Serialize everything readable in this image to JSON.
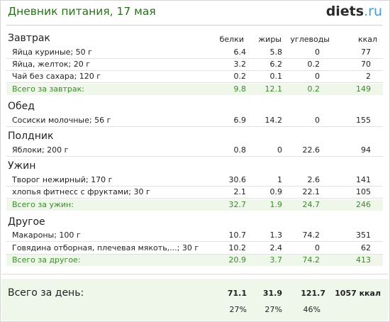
{
  "header": {
    "title": "Дневник питания, 17 мая",
    "logo_main": "diets",
    "logo_tld": ".ru"
  },
  "columns": {
    "protein": "белки",
    "fat": "жиры",
    "carbs": "углеводы",
    "kcal": "ккал"
  },
  "meals": [
    {
      "name": "Завтрак",
      "items": [
        {
          "name": "Яйца куриные; 50 г",
          "protein": "6.4",
          "fat": "5.8",
          "carbs": "0",
          "kcal": "77"
        },
        {
          "name": "Яйца, желток; 20 г",
          "protein": "3.2",
          "fat": "6.2",
          "carbs": "0.2",
          "kcal": "70"
        },
        {
          "name": "Чай без сахара; 120 г",
          "protein": "0.2",
          "fat": "0.1",
          "carbs": "0",
          "kcal": "2"
        }
      ],
      "total": {
        "label": "Всего за завтрак:",
        "protein": "9.8",
        "fat": "12.1",
        "carbs": "0.2",
        "kcal": "149"
      }
    },
    {
      "name": "Обед",
      "items": [
        {
          "name": "Сосиски молочные; 56 г",
          "protein": "6.9",
          "fat": "14.2",
          "carbs": "0",
          "kcal": "155"
        }
      ]
    },
    {
      "name": "Полдник",
      "items": [
        {
          "name": "Яблоки; 200 г",
          "protein": "0.8",
          "fat": "0",
          "carbs": "22.6",
          "kcal": "94"
        }
      ]
    },
    {
      "name": "Ужин",
      "items": [
        {
          "name": "Творог нежирный; 170 г",
          "protein": "30.6",
          "fat": "1",
          "carbs": "2.6",
          "kcal": "141"
        },
        {
          "name": "хлопья фитнесс с фруктами; 30 г",
          "protein": "2.1",
          "fat": "0.9",
          "carbs": "22.1",
          "kcal": "105"
        }
      ],
      "total": {
        "label": "Всего за ужин:",
        "protein": "32.7",
        "fat": "1.9",
        "carbs": "24.7",
        "kcal": "246"
      }
    },
    {
      "name": "Другое",
      "items": [
        {
          "name": "Макароны; 100 г",
          "protein": "10.7",
          "fat": "1.3",
          "carbs": "74.2",
          "kcal": "351"
        },
        {
          "name": "Говядина отборная, плечевая мякоть,...; 30 г",
          "protein": "10.2",
          "fat": "2.4",
          "carbs": "0",
          "kcal": "62"
        }
      ],
      "total": {
        "label": "Всего за другое:",
        "protein": "20.9",
        "fat": "3.7",
        "carbs": "74.2",
        "kcal": "413"
      }
    }
  ],
  "day": {
    "label": "Всего за день:",
    "protein": "71.1",
    "fat": "31.9",
    "carbs": "121.7",
    "kcal": "1057 ккал",
    "protein_pct": "27%",
    "fat_pct": "27%",
    "carbs_pct": "46%"
  }
}
